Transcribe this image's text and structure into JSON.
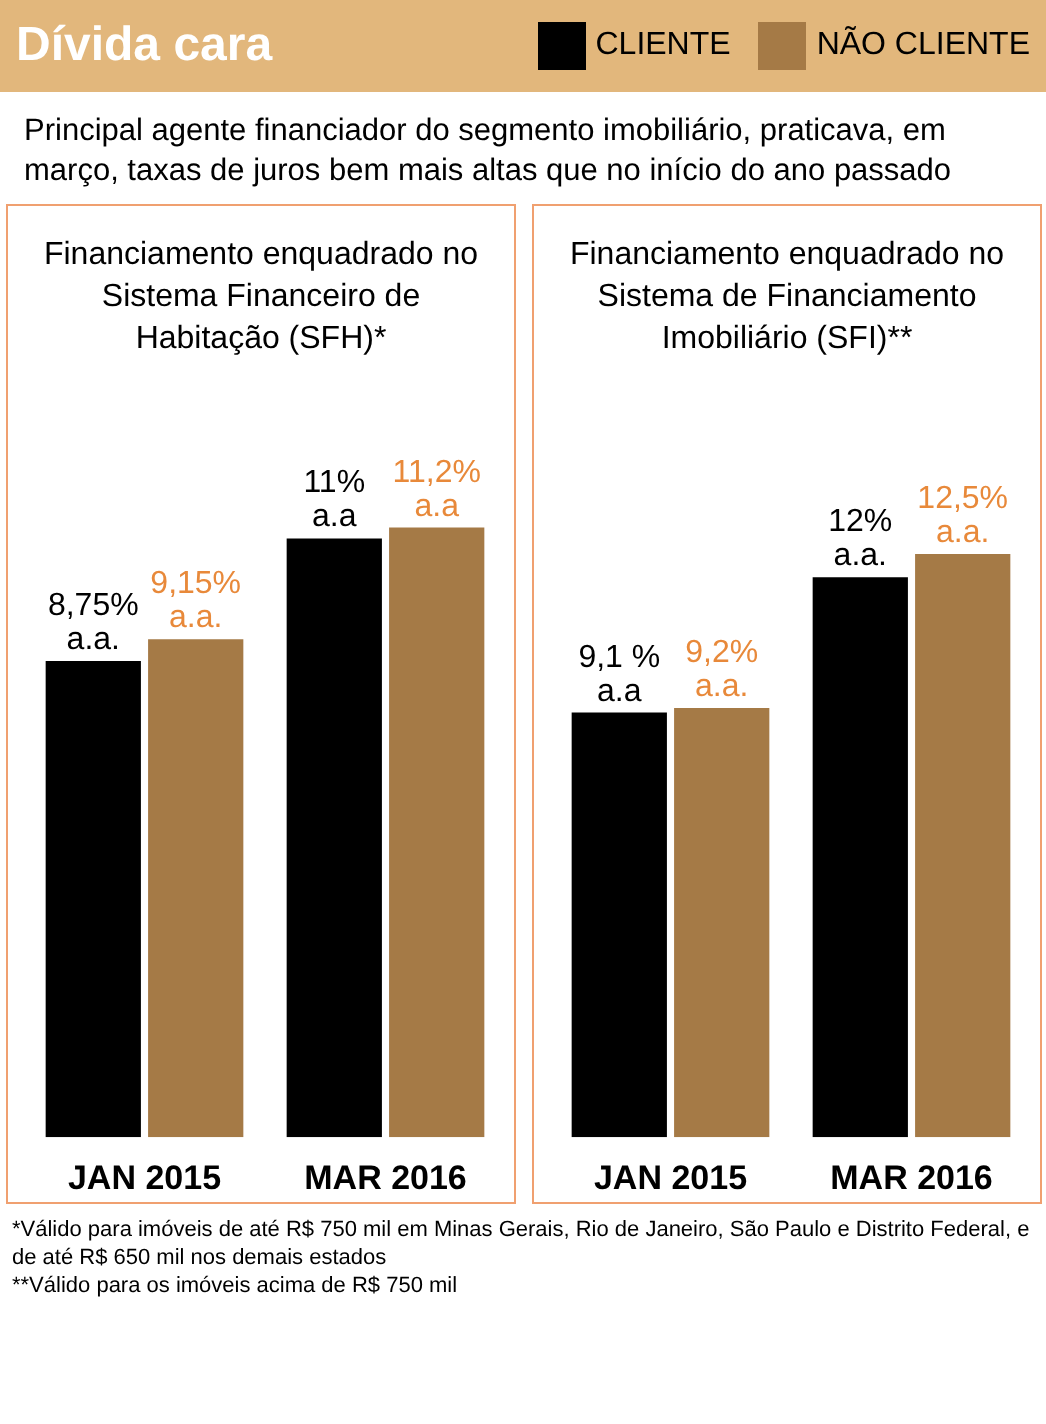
{
  "chart_data": [
    {
      "type": "bar",
      "title": "Dívida cara",
      "subtitle": "Principal agente financiador do segmento imobiliário, praticava, em março, taxas de juros bem mais altas que no início do ano passado",
      "xlabel": "Financiamento enquadrado no Sistema Financeiro de Habitação (SFH)*",
      "categories": [
        "JAN 2015",
        "MAR 2016"
      ],
      "legend": "top right",
      "series": [
        {
          "name": "CLIENTE",
          "color": "#000000",
          "values": [
            8.75,
            11
          ],
          "value_labels": [
            "8,75%\na.a.",
            "11%\na.a"
          ]
        },
        {
          "name": "NÃO CLIENTE",
          "color": "#a57a46",
          "values": [
            9.15,
            11.2
          ],
          "value_labels": [
            "9,15%\na.a.",
            "11,2%\na.a"
          ]
        }
      ]
    },
    {
      "type": "bar",
      "xlabel": "Financiamento enquadrado no Sistema de Financiamento Imobiliário (SFI)**",
      "categories": [
        "JAN 2015",
        "MAR 2016"
      ],
      "series": [
        {
          "color": "#000000",
          "values": [
            9.1,
            12
          ],
          "value_labels": [
            "9,1 %\na.a",
            "12%\na.a."
          ]
        },
        {
          "color": "#a57a46",
          "values": [
            9.2,
            12.5
          ],
          "value_labels": [
            "9,2%\na.a.",
            "12,5%\na.a."
          ]
        }
      ],
      "annotations": [
        "*Válido para imóveis de até R$ 750 mil em Minas Gerais, Rio de Janeiro, São Paulo e Distrito Federal, e de até R$ 650 mil nos demais estados",
        "**Válido para os imóveis acima de R$ 750 mil"
      ]
    }
  ]
}
